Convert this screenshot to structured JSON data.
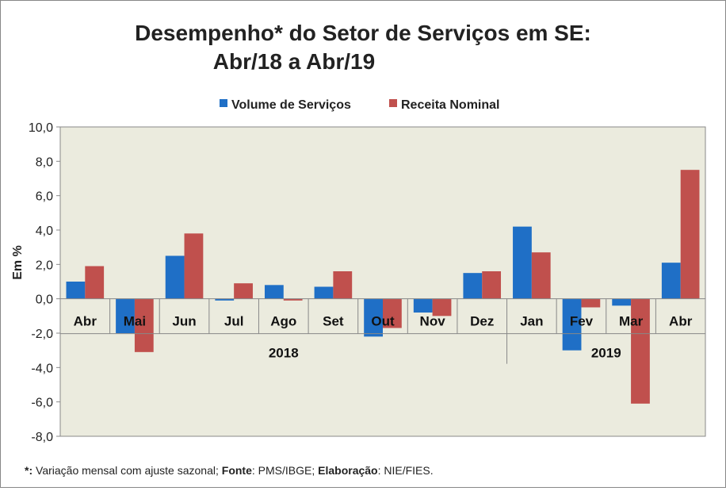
{
  "chart_data": {
    "type": "bar",
    "title_line1": "Desempenho* do Setor de Serviços em SE:",
    "title_line2": "Abr/18 a Abr/19",
    "ylabel": "Em %",
    "ylim": [
      -8,
      10
    ],
    "yticks": [
      "10,0",
      "8,0",
      "6,0",
      "4,0",
      "2,0",
      "0,0",
      "-2,0",
      "-4,0",
      "-6,0",
      "-8,0"
    ],
    "ytick_values": [
      10,
      8,
      6,
      4,
      2,
      0,
      -2,
      -4,
      -6,
      -8
    ],
    "categories": [
      "Abr",
      "Mai",
      "Jun",
      "Jul",
      "Ago",
      "Set",
      "Out",
      "Nov",
      "Dez",
      "Jan",
      "Fev",
      "Mar",
      "Abr"
    ],
    "years": [
      {
        "label": "2018",
        "count": 9
      },
      {
        "label": "2019",
        "count": 4
      }
    ],
    "legend_position": "top",
    "series": [
      {
        "name": "Volume de Serviços",
        "color": "#1f6fc6",
        "values": [
          1.0,
          -2.0,
          2.5,
          -0.1,
          0.8,
          0.7,
          -2.2,
          -0.8,
          1.5,
          4.2,
          -3.0,
          -0.4,
          2.1
        ]
      },
      {
        "name": "Receita Nominal",
        "color": "#c0504d",
        "values": [
          1.9,
          -3.1,
          3.8,
          0.9,
          -0.1,
          1.6,
          -1.7,
          -1.0,
          1.6,
          2.7,
          -0.5,
          -6.1,
          7.5
        ]
      }
    ],
    "footnote": {
      "star": "*:",
      "t1": " Variação mensal com ajuste sazonal; ",
      "fonte": "Fonte",
      "t2": ": PMS/IBGE; ",
      "elab": "Elaboração",
      "t3": ": NIE/FIES."
    }
  }
}
